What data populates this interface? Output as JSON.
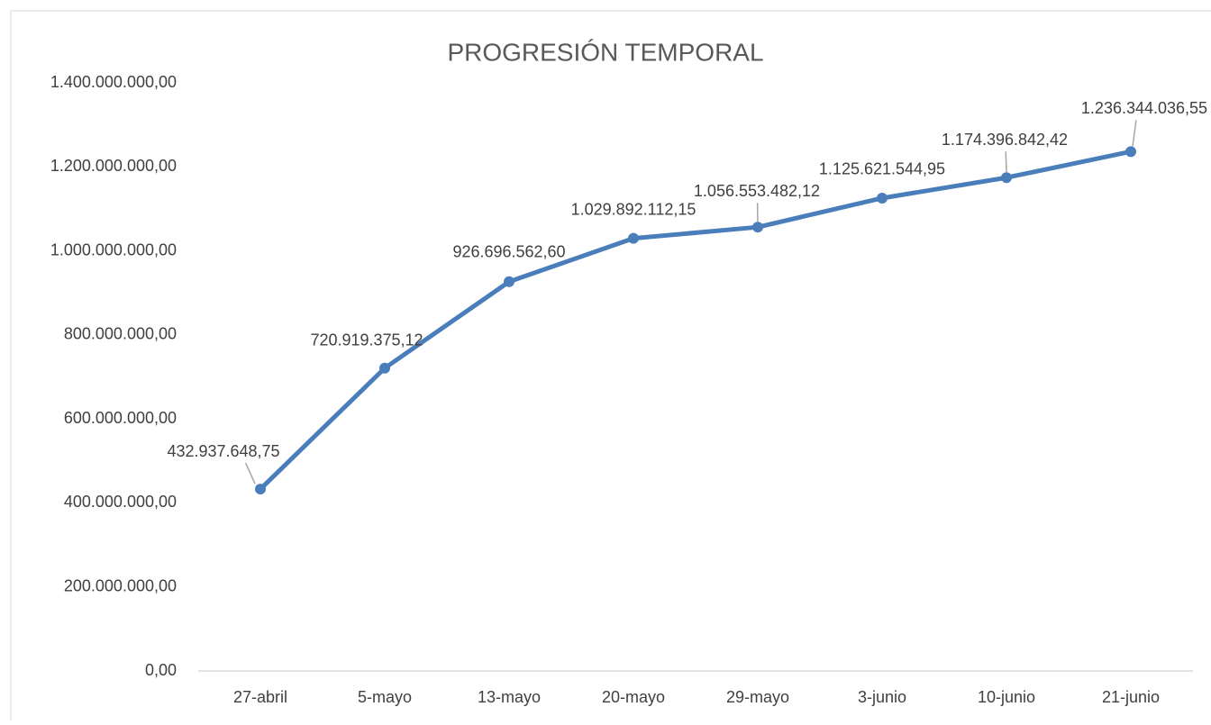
{
  "chart_data": {
    "type": "line",
    "title": "PROGRESIÓN TEMPORAL",
    "categories": [
      "27-abril",
      "5-mayo",
      "13-mayo",
      "20-mayo",
      "29-mayo",
      "3-junio",
      "10-junio",
      "21-junio"
    ],
    "series": [
      {
        "color": "#4a7ebb",
        "values": [
          432937648.75,
          720919375.12,
          926696562.6,
          1029892112.15,
          1056553482.12,
          1125621544.95,
          1174396842.42,
          1236344036.55
        ],
        "value_labels": [
          "432.937.648,75",
          "720.919.375,12",
          "926.696.562,60",
          "1.029.892.112,15",
          "1.056.553.482,12",
          "1.125.621.544,95",
          "1.174.396.842,42",
          "1.236.344.036,55"
        ]
      }
    ],
    "ylim": [
      0,
      1400000000
    ],
    "yticks": [
      {
        "value": 0,
        "label": "0,00"
      },
      {
        "value": 200000000,
        "label": "200.000.000,00"
      },
      {
        "value": 400000000,
        "label": "400.000.000,00"
      },
      {
        "value": 600000000,
        "label": "600.000.000,00"
      },
      {
        "value": 800000000,
        "label": "800.000.000,00"
      },
      {
        "value": 1000000000,
        "label": "1.000.000.000,00"
      },
      {
        "value": 1200000000,
        "label": "1.200.000.000,00"
      },
      {
        "value": 1400000000,
        "label": "1.400.000.000,00"
      }
    ],
    "grid": false
  }
}
